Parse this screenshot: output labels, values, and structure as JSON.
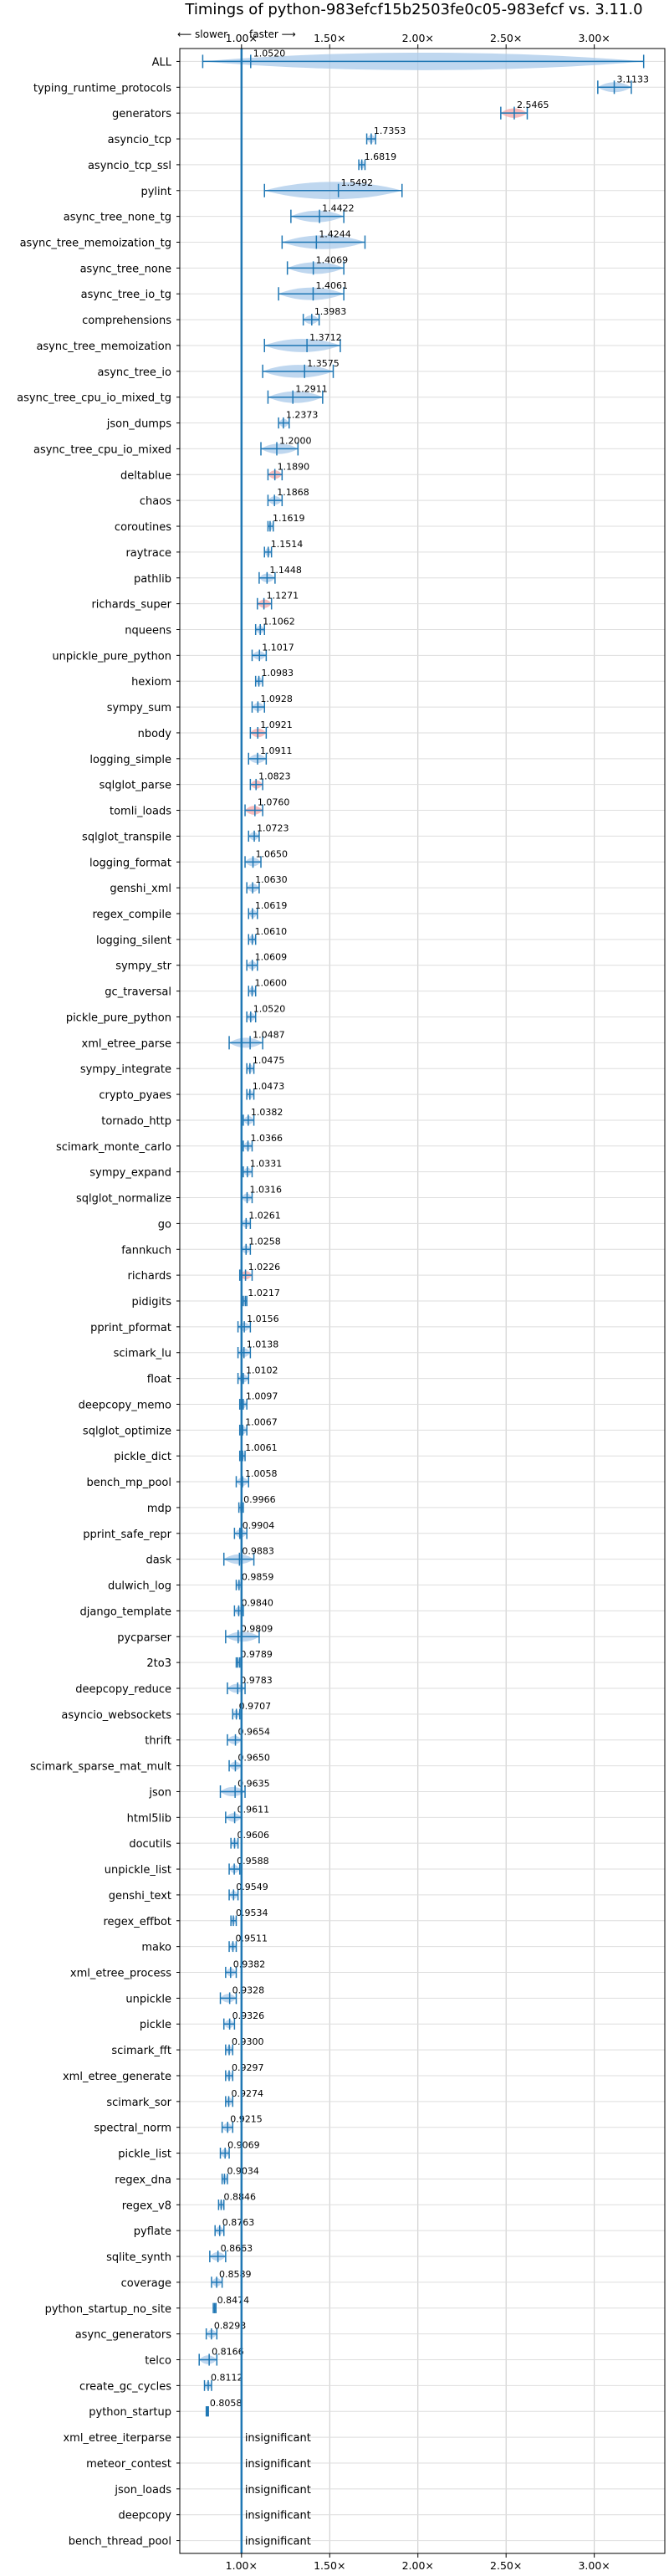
{
  "chart_data": {
    "type": "violin",
    "title": "Timings of python-983efcf15b2503fe0c05-983efcf vs. 3.11.0",
    "direction_labels": {
      "slower": "⟵ slower",
      "faster": "faster ⟶"
    },
    "x_ticks": [
      {
        "value": 1.0,
        "label": "1.00×"
      },
      {
        "value": 1.5,
        "label": "1.50×"
      },
      {
        "value": 2.0,
        "label": "2.00×"
      },
      {
        "value": 2.5,
        "label": "2.50×"
      },
      {
        "value": 3.0,
        "label": "3.00×"
      }
    ],
    "xlim": [
      0.65,
      3.4
    ],
    "grid": true,
    "insignificant_label": "insignificant",
    "colors": {
      "accent": "#1f77b4",
      "violin": "#a9c9ea",
      "significant_slower": "#f4a6a6"
    },
    "benchmarks": [
      {
        "name": "ALL",
        "value": 1.052,
        "low": 0.78,
        "high": 3.28
      },
      {
        "name": "typing_runtime_protocols",
        "value": 3.1133,
        "low": 3.02,
        "high": 3.21
      },
      {
        "name": "generators",
        "value": 2.5465,
        "low": 2.47,
        "high": 2.62,
        "slower": true
      },
      {
        "name": "asyncio_tcp",
        "value": 1.7353,
        "low": 1.71,
        "high": 1.76
      },
      {
        "name": "asyncio_tcp_ssl",
        "value": 1.6819,
        "low": 1.665,
        "high": 1.7
      },
      {
        "name": "pylint",
        "value": 1.5492,
        "low": 1.13,
        "high": 1.91
      },
      {
        "name": "async_tree_none_tg",
        "value": 1.4422,
        "low": 1.28,
        "high": 1.58
      },
      {
        "name": "async_tree_memoization_tg",
        "value": 1.4244,
        "low": 1.23,
        "high": 1.7
      },
      {
        "name": "async_tree_none",
        "value": 1.4069,
        "low": 1.26,
        "high": 1.58
      },
      {
        "name": "async_tree_io_tg",
        "value": 1.4061,
        "low": 1.21,
        "high": 1.58
      },
      {
        "name": "comprehensions",
        "value": 1.3983,
        "low": 1.35,
        "high": 1.44
      },
      {
        "name": "async_tree_memoization",
        "value": 1.3712,
        "low": 1.13,
        "high": 1.56
      },
      {
        "name": "async_tree_io",
        "value": 1.3575,
        "low": 1.12,
        "high": 1.52
      },
      {
        "name": "async_tree_cpu_io_mixed_tg",
        "value": 1.2911,
        "low": 1.15,
        "high": 1.46
      },
      {
        "name": "json_dumps",
        "value": 1.2373,
        "low": 1.21,
        "high": 1.27
      },
      {
        "name": "async_tree_cpu_io_mixed",
        "value": 1.2,
        "low": 1.11,
        "high": 1.32
      },
      {
        "name": "deltablue",
        "value": 1.189,
        "low": 1.15,
        "high": 1.23,
        "slower": true
      },
      {
        "name": "chaos",
        "value": 1.1868,
        "low": 1.15,
        "high": 1.23
      },
      {
        "name": "coroutines",
        "value": 1.1619,
        "low": 1.15,
        "high": 1.18
      },
      {
        "name": "raytrace",
        "value": 1.1514,
        "low": 1.13,
        "high": 1.17
      },
      {
        "name": "pathlib",
        "value": 1.1448,
        "low": 1.1,
        "high": 1.19
      },
      {
        "name": "richards_super",
        "value": 1.1271,
        "low": 1.09,
        "high": 1.17,
        "slower": true
      },
      {
        "name": "nqueens",
        "value": 1.1062,
        "low": 1.08,
        "high": 1.13
      },
      {
        "name": "unpickle_pure_python",
        "value": 1.1017,
        "low": 1.06,
        "high": 1.14
      },
      {
        "name": "hexiom",
        "value": 1.0983,
        "low": 1.08,
        "high": 1.12
      },
      {
        "name": "sympy_sum",
        "value": 1.0928,
        "low": 1.06,
        "high": 1.13
      },
      {
        "name": "nbody",
        "value": 1.0921,
        "low": 1.05,
        "high": 1.14,
        "slower": true
      },
      {
        "name": "logging_simple",
        "value": 1.0911,
        "low": 1.04,
        "high": 1.14
      },
      {
        "name": "sqlglot_parse",
        "value": 1.0823,
        "low": 1.05,
        "high": 1.12,
        "slower": true
      },
      {
        "name": "tomli_loads",
        "value": 1.076,
        "low": 1.02,
        "high": 1.12,
        "slower": true
      },
      {
        "name": "sqlglot_transpile",
        "value": 1.0723,
        "low": 1.04,
        "high": 1.1
      },
      {
        "name": "logging_format",
        "value": 1.065,
        "low": 1.02,
        "high": 1.11
      },
      {
        "name": "genshi_xml",
        "value": 1.063,
        "low": 1.03,
        "high": 1.1
      },
      {
        "name": "regex_compile",
        "value": 1.0619,
        "low": 1.04,
        "high": 1.09
      },
      {
        "name": "logging_silent",
        "value": 1.061,
        "low": 1.04,
        "high": 1.08
      },
      {
        "name": "sympy_str",
        "value": 1.0609,
        "low": 1.03,
        "high": 1.09
      },
      {
        "name": "gc_traversal",
        "value": 1.06,
        "low": 1.04,
        "high": 1.08
      },
      {
        "name": "pickle_pure_python",
        "value": 1.052,
        "low": 1.03,
        "high": 1.08
      },
      {
        "name": "xml_etree_parse",
        "value": 1.0487,
        "low": 0.93,
        "high": 1.12
      },
      {
        "name": "sympy_integrate",
        "value": 1.0475,
        "low": 1.03,
        "high": 1.07
      },
      {
        "name": "crypto_pyaes",
        "value": 1.0473,
        "low": 1.03,
        "high": 1.07
      },
      {
        "name": "tornado_http",
        "value": 1.0382,
        "low": 1.01,
        "high": 1.07
      },
      {
        "name": "scimark_monte_carlo",
        "value": 1.0366,
        "low": 1.01,
        "high": 1.06
      },
      {
        "name": "sympy_expand",
        "value": 1.0331,
        "low": 1.01,
        "high": 1.06
      },
      {
        "name": "sqlglot_normalize",
        "value": 1.0316,
        "low": 1.0,
        "high": 1.06
      },
      {
        "name": "go",
        "value": 1.0261,
        "low": 1.0,
        "high": 1.05
      },
      {
        "name": "fannkuch",
        "value": 1.0258,
        "low": 1.0,
        "high": 1.05
      },
      {
        "name": "richards",
        "value": 1.0226,
        "low": 0.99,
        "high": 1.06,
        "slower": true
      },
      {
        "name": "pidigits",
        "value": 1.0217,
        "low": 1.01,
        "high": 1.03
      },
      {
        "name": "pprint_pformat",
        "value": 1.0156,
        "low": 0.98,
        "high": 1.05
      },
      {
        "name": "scimark_lu",
        "value": 1.0138,
        "low": 0.98,
        "high": 1.05
      },
      {
        "name": "float",
        "value": 1.0102,
        "low": 0.98,
        "high": 1.04
      },
      {
        "name": "deepcopy_memo",
        "value": 1.0097,
        "low": 0.99,
        "high": 1.03
      },
      {
        "name": "sqlglot_optimize",
        "value": 1.0067,
        "low": 0.99,
        "high": 1.03
      },
      {
        "name": "pickle_dict",
        "value": 1.0061,
        "low": 0.99,
        "high": 1.02
      },
      {
        "name": "bench_mp_pool",
        "value": 1.0058,
        "low": 0.97,
        "high": 1.04
      },
      {
        "name": "mdp",
        "value": 0.9966,
        "low": 0.985,
        "high": 1.01
      },
      {
        "name": "pprint_safe_repr",
        "value": 0.9904,
        "low": 0.96,
        "high": 1.03
      },
      {
        "name": "dask",
        "value": 0.9883,
        "low": 0.9,
        "high": 1.07
      },
      {
        "name": "dulwich_log",
        "value": 0.9859,
        "low": 0.97,
        "high": 1.0
      },
      {
        "name": "django_template",
        "value": 0.984,
        "low": 0.96,
        "high": 1.01
      },
      {
        "name": "pycparser",
        "value": 0.9809,
        "low": 0.91,
        "high": 1.1
      },
      {
        "name": "2to3",
        "value": 0.9789,
        "low": 0.97,
        "high": 0.99
      },
      {
        "name": "deepcopy_reduce",
        "value": 0.9783,
        "low": 0.92,
        "high": 1.02
      },
      {
        "name": "asyncio_websockets",
        "value": 0.9707,
        "low": 0.95,
        "high": 0.99
      },
      {
        "name": "thrift",
        "value": 0.9654,
        "low": 0.92,
        "high": 1.0
      },
      {
        "name": "scimark_sparse_mat_mult",
        "value": 0.965,
        "low": 0.93,
        "high": 1.0
      },
      {
        "name": "json",
        "value": 0.9635,
        "low": 0.88,
        "high": 1.02
      },
      {
        "name": "html5lib",
        "value": 0.9611,
        "low": 0.91,
        "high": 1.0
      },
      {
        "name": "docutils",
        "value": 0.9606,
        "low": 0.94,
        "high": 0.98
      },
      {
        "name": "unpickle_list",
        "value": 0.9588,
        "low": 0.93,
        "high": 0.99
      },
      {
        "name": "genshi_text",
        "value": 0.9549,
        "low": 0.93,
        "high": 0.98
      },
      {
        "name": "regex_effbot",
        "value": 0.9534,
        "low": 0.94,
        "high": 0.97
      },
      {
        "name": "mako",
        "value": 0.9511,
        "low": 0.93,
        "high": 0.97
      },
      {
        "name": "xml_etree_process",
        "value": 0.9382,
        "low": 0.91,
        "high": 0.97
      },
      {
        "name": "unpickle",
        "value": 0.9328,
        "low": 0.88,
        "high": 0.97
      },
      {
        "name": "pickle",
        "value": 0.9326,
        "low": 0.9,
        "high": 0.96
      },
      {
        "name": "scimark_fft",
        "value": 0.93,
        "low": 0.91,
        "high": 0.95
      },
      {
        "name": "xml_etree_generate",
        "value": 0.9297,
        "low": 0.91,
        "high": 0.95
      },
      {
        "name": "scimark_sor",
        "value": 0.9274,
        "low": 0.91,
        "high": 0.95
      },
      {
        "name": "spectral_norm",
        "value": 0.9215,
        "low": 0.89,
        "high": 0.95
      },
      {
        "name": "pickle_list",
        "value": 0.9069,
        "low": 0.88,
        "high": 0.93
      },
      {
        "name": "regex_dna",
        "value": 0.9034,
        "low": 0.89,
        "high": 0.92
      },
      {
        "name": "regex_v8",
        "value": 0.8846,
        "low": 0.87,
        "high": 0.9
      },
      {
        "name": "pyflate",
        "value": 0.8763,
        "low": 0.85,
        "high": 0.9
      },
      {
        "name": "sqlite_synth",
        "value": 0.8663,
        "low": 0.82,
        "high": 0.91
      },
      {
        "name": "coverage",
        "value": 0.8589,
        "low": 0.83,
        "high": 0.89
      },
      {
        "name": "python_startup_no_site",
        "value": 0.8474,
        "low": 0.84,
        "high": 0.855
      },
      {
        "name": "async_generators",
        "value": 0.8293,
        "low": 0.8,
        "high": 0.86
      },
      {
        "name": "telco",
        "value": 0.8166,
        "low": 0.76,
        "high": 0.86
      },
      {
        "name": "create_gc_cycles",
        "value": 0.8112,
        "low": 0.79,
        "high": 0.83
      },
      {
        "name": "python_startup",
        "value": 0.8058,
        "low": 0.8,
        "high": 0.812
      },
      {
        "name": "xml_etree_iterparse",
        "insignificant": true
      },
      {
        "name": "meteor_contest",
        "insignificant": true
      },
      {
        "name": "json_loads",
        "insignificant": true
      },
      {
        "name": "deepcopy",
        "insignificant": true
      },
      {
        "name": "bench_thread_pool",
        "insignificant": true
      }
    ]
  }
}
